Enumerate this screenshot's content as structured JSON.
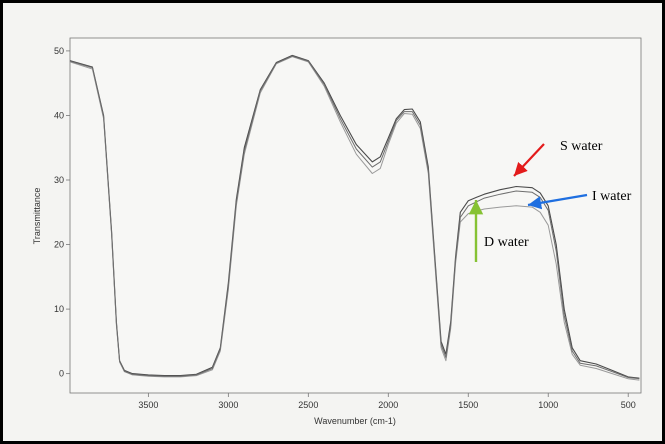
{
  "chart_data": {
    "type": "line",
    "title": "",
    "xlabel": "Wavenumber (cm-1)",
    "ylabel": "Transmittance",
    "xlim": [
      3990,
      420
    ],
    "ylim": [
      -3,
      52
    ],
    "x_ticks": [
      "3500",
      "3000",
      "2500",
      "2000",
      "1500",
      "1000",
      "500"
    ],
    "x_tick_values": [
      3500,
      3000,
      2500,
      2000,
      1500,
      1000,
      500
    ],
    "y_ticks": [
      "0",
      "10",
      "20",
      "30",
      "40",
      "50"
    ],
    "y_tick_values": [
      0,
      10,
      20,
      30,
      40,
      50
    ],
    "grid": false,
    "series": [
      {
        "name": "S water",
        "x": [
          3990,
          3850,
          3780,
          3730,
          3700,
          3680,
          3650,
          3600,
          3500,
          3400,
          3300,
          3200,
          3100,
          3050,
          3000,
          2950,
          2900,
          2800,
          2700,
          2600,
          2500,
          2400,
          2300,
          2200,
          2100,
          2050,
          2000,
          1950,
          1900,
          1850,
          1800,
          1750,
          1700,
          1670,
          1640,
          1610,
          1580,
          1550,
          1500,
          1450,
          1400,
          1300,
          1200,
          1100,
          1050,
          1000,
          950,
          900,
          850,
          800,
          700,
          600,
          500,
          430
        ],
        "y": [
          48.5,
          47.5,
          40,
          22,
          8,
          2,
          0.5,
          0,
          -0.2,
          -0.3,
          -0.3,
          -0.1,
          1,
          4,
          14,
          27,
          35,
          44,
          48.2,
          49.3,
          48.5,
          45,
          40,
          35.5,
          32.8,
          33.6,
          36.5,
          39.5,
          40.9,
          41,
          39,
          32,
          15,
          5,
          3,
          8,
          18,
          25,
          26.8,
          27.3,
          27.8,
          28.5,
          29,
          28.8,
          28,
          26,
          20,
          10,
          4,
          2,
          1.5,
          0.5,
          -0.5,
          -0.7
        ]
      },
      {
        "name": "I water",
        "x": [
          3990,
          3850,
          3780,
          3730,
          3700,
          3680,
          3650,
          3600,
          3500,
          3400,
          3300,
          3200,
          3100,
          3050,
          3000,
          2950,
          2900,
          2800,
          2700,
          2600,
          2500,
          2400,
          2300,
          2200,
          2100,
          2050,
          2000,
          1950,
          1900,
          1850,
          1800,
          1750,
          1700,
          1670,
          1640,
          1610,
          1580,
          1550,
          1500,
          1450,
          1400,
          1300,
          1200,
          1100,
          1050,
          1000,
          950,
          900,
          850,
          800,
          700,
          600,
          500,
          430
        ],
        "y": [
          48.3,
          47.2,
          39.5,
          21.5,
          7.5,
          1.8,
          0.3,
          -0.2,
          -0.4,
          -0.5,
          -0.5,
          -0.3,
          0.6,
          3.5,
          13,
          26,
          34,
          43.5,
          48,
          49.1,
          48.3,
          44.5,
          39,
          34,
          31,
          31.8,
          35.5,
          38.8,
          40.3,
          40.2,
          38,
          31,
          14,
          4,
          2,
          7,
          17,
          23.5,
          24.8,
          25.2,
          25.5,
          25.8,
          26,
          25.8,
          25,
          23,
          17,
          8,
          3,
          1.3,
          0.8,
          0,
          -0.8,
          -1
        ]
      },
      {
        "name": "D water",
        "x": [
          3990,
          3850,
          3780,
          3730,
          3700,
          3680,
          3650,
          3600,
          3500,
          3400,
          3300,
          3200,
          3100,
          3050,
          3000,
          2950,
          2900,
          2800,
          2700,
          2600,
          2500,
          2400,
          2300,
          2200,
          2100,
          2050,
          2000,
          1950,
          1900,
          1850,
          1800,
          1750,
          1700,
          1670,
          1640,
          1610,
          1580,
          1550,
          1500,
          1450,
          1400,
          1300,
          1200,
          1100,
          1050,
          1000,
          950,
          900,
          850,
          800,
          700,
          600,
          500,
          430
        ],
        "y": [
          48.4,
          47.4,
          39.8,
          21.8,
          7.8,
          1.9,
          0.4,
          -0.1,
          -0.3,
          -0.4,
          -0.4,
          -0.2,
          0.8,
          3.8,
          13.5,
          26.5,
          34.5,
          43.8,
          48.1,
          49.2,
          48.4,
          44.8,
          39.5,
          34.8,
          32,
          32.8,
          36,
          39.2,
          40.6,
          40.6,
          38.5,
          31.5,
          14.5,
          4.5,
          2.5,
          7.5,
          17.5,
          24.2,
          26,
          26.6,
          27.2,
          27.8,
          28.3,
          28.1,
          27.3,
          25.3,
          19,
          9,
          3.5,
          1.6,
          1.2,
          0.3,
          -0.6,
          -0.8
        ]
      }
    ],
    "annotations": [
      {
        "text": "S water",
        "arrow_color": "#e31b1b"
      },
      {
        "text": "I water",
        "arrow_color": "#1f6fe0"
      },
      {
        "text": "D water",
        "arrow_color": "#86c233"
      }
    ]
  }
}
